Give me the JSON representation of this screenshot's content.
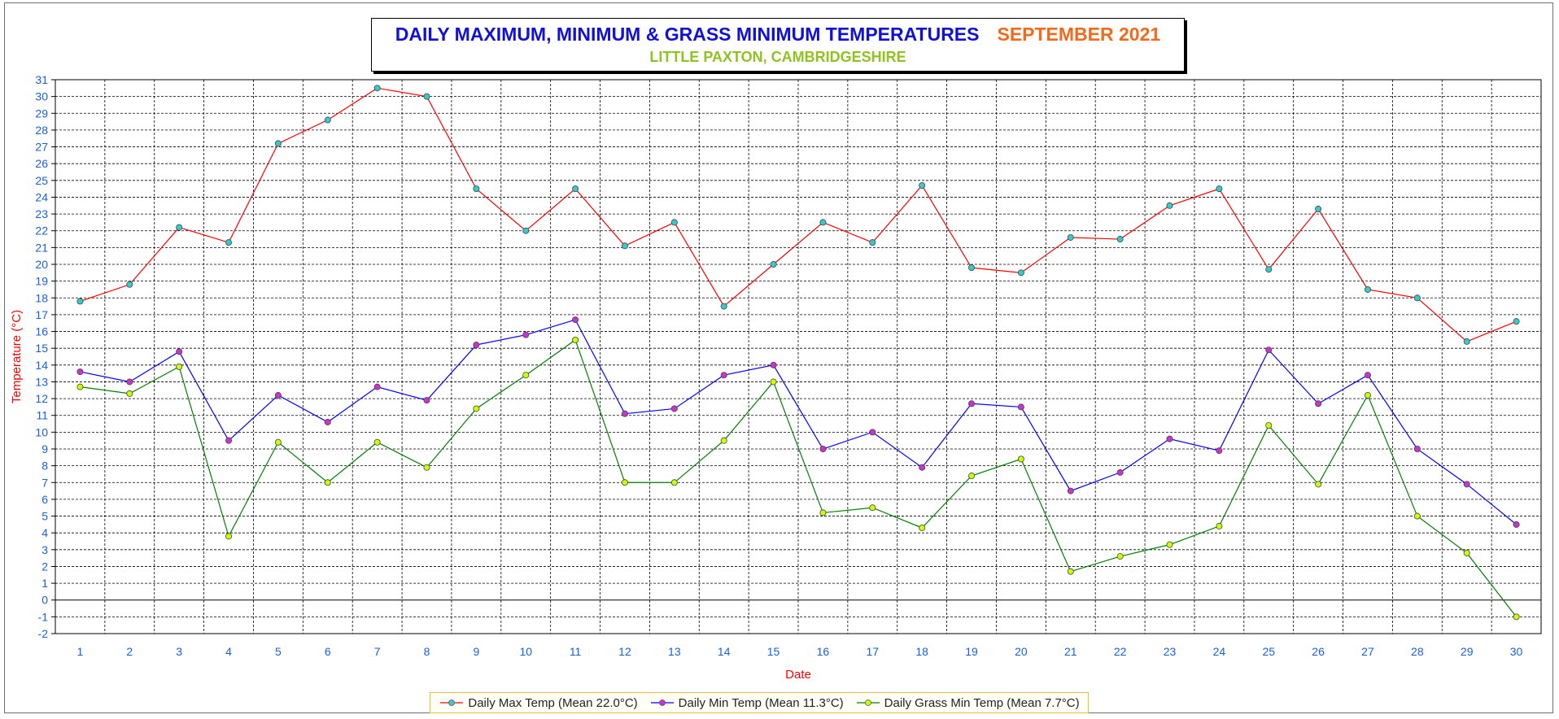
{
  "chart_data": {
    "type": "line",
    "title": "DAILY MAXIMUM, MINIMUM & GRASS MINIMUM TEMPERATURES",
    "title_month": "SEPTEMBER 2021",
    "subtitle": "LITTLE PAXTON, CAMBRIDGESHIRE",
    "xlabel": "Date",
    "ylabel": "Temperature (°C)",
    "x": [
      1,
      2,
      3,
      4,
      5,
      6,
      7,
      8,
      9,
      10,
      11,
      12,
      13,
      14,
      15,
      16,
      17,
      18,
      19,
      20,
      21,
      22,
      23,
      24,
      25,
      26,
      27,
      28,
      29,
      30
    ],
    "xlim": [
      0.5,
      30.5
    ],
    "ylim": [
      -2,
      31
    ],
    "yticks": [
      -2,
      -1,
      0,
      1,
      2,
      3,
      4,
      5,
      6,
      7,
      8,
      9,
      10,
      11,
      12,
      13,
      14,
      15,
      16,
      17,
      18,
      19,
      20,
      21,
      22,
      23,
      24,
      25,
      26,
      27,
      28,
      29,
      30,
      31
    ],
    "grid": true,
    "legend_position": "bottom",
    "series": [
      {
        "name": "Daily Max Temp (Mean 22.0°C)",
        "line_color": "#ff0000",
        "marker_color": "#33cccc",
        "values": [
          17.8,
          18.8,
          22.2,
          21.3,
          27.2,
          28.6,
          30.5,
          30.0,
          24.5,
          22.0,
          24.5,
          21.1,
          22.5,
          17.5,
          20.0,
          22.5,
          21.3,
          24.7,
          19.8,
          19.5,
          21.6,
          21.5,
          23.5,
          24.5,
          19.7,
          23.3,
          18.5,
          18.0,
          15.4,
          16.6
        ]
      },
      {
        "name": "Daily Min Temp (Mean 11.3°C)",
        "line_color": "#0000ff",
        "marker_color": "#cc33cc",
        "values": [
          13.6,
          13.0,
          14.8,
          9.5,
          12.2,
          10.6,
          12.7,
          11.9,
          15.2,
          15.8,
          16.7,
          11.1,
          11.4,
          13.4,
          14.0,
          9.0,
          10.0,
          7.9,
          11.7,
          11.5,
          6.5,
          7.6,
          9.6,
          8.9,
          14.9,
          11.7,
          13.4,
          9.0,
          6.9,
          4.5
        ]
      },
      {
        "name": "Daily Grass Min Temp (Mean 7.7°C)",
        "line_color": "#008000",
        "marker_color": "#ccff00",
        "values": [
          12.7,
          12.3,
          13.9,
          3.8,
          9.4,
          7.0,
          9.4,
          7.9,
          11.4,
          13.4,
          15.5,
          7.0,
          7.0,
          9.5,
          13.0,
          5.2,
          5.5,
          4.3,
          7.4,
          8.4,
          1.7,
          2.6,
          3.3,
          4.4,
          10.4,
          6.9,
          12.2,
          5.0,
          2.8,
          -1.0
        ]
      }
    ]
  }
}
